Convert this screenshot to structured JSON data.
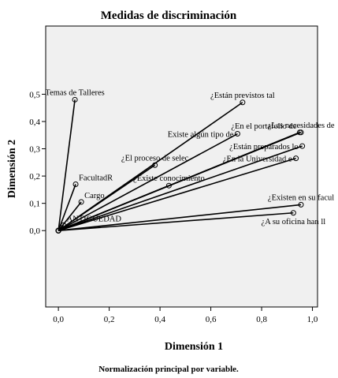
{
  "chart_data": {
    "type": "scatter",
    "title": "Medidas de discriminación",
    "xlabel": "Dimensión 1",
    "ylabel": "Dimensión 2",
    "footnote": "Normalización principal por variable.",
    "xlim": [
      -0.05,
      1.02
    ],
    "ylim": [
      -0.28,
      0.75
    ],
    "xticks": [
      "0,0",
      "0,2",
      "0,4",
      "0,6",
      "0,8",
      "1,0"
    ],
    "yticks": [
      "0,0",
      "0,1",
      "0,2",
      "0,3",
      "0,4",
      "0,5"
    ],
    "grid": false,
    "lines_from_origin": true,
    "plot_background": "#f0f0f0",
    "points": [
      {
        "label": "Temas de Talleres",
        "x": 0.065,
        "y": 0.48,
        "label_pos": "above"
      },
      {
        "label": "FacultadR",
        "x": 0.068,
        "y": 0.17,
        "label_pos": "above-right"
      },
      {
        "label": "Cargo",
        "x": 0.09,
        "y": 0.105,
        "label_pos": "above-right"
      },
      {
        "label": "ANTIGUEDAD",
        "x": 0.02,
        "y": 0.02,
        "label_pos": "above-right"
      },
      {
        "label": "¿Están previstos tal",
        "x": 0.725,
        "y": 0.47,
        "label_pos": "above"
      },
      {
        "label": "¿Las necesidades de",
        "x": 0.955,
        "y": 0.36,
        "label_pos": "above"
      },
      {
        "label": "Existe algún tipo de",
        "x": 0.705,
        "y": 0.355,
        "label_pos": "left"
      },
      {
        "label": "¿En el portafolio de",
        "x": 0.95,
        "y": 0.36,
        "label_pos": "above-left"
      },
      {
        "label": "¿Están preparados lo",
        "x": 0.96,
        "y": 0.31,
        "label_pos": "left"
      },
      {
        "label": "¿El proceso de selec",
        "x": 0.38,
        "y": 0.24,
        "label_pos": "above"
      },
      {
        "label": "¿En la Universidad e",
        "x": 0.935,
        "y": 0.265,
        "label_pos": "left"
      },
      {
        "label": "¿Existe conocimiento",
        "x": 0.435,
        "y": 0.165,
        "label_pos": "above"
      },
      {
        "label": "¿Existen en su facul",
        "x": 0.955,
        "y": 0.095,
        "label_pos": "above"
      },
      {
        "label": "¿A su oficina han ll",
        "x": 0.925,
        "y": 0.065,
        "label_pos": "below"
      }
    ]
  }
}
